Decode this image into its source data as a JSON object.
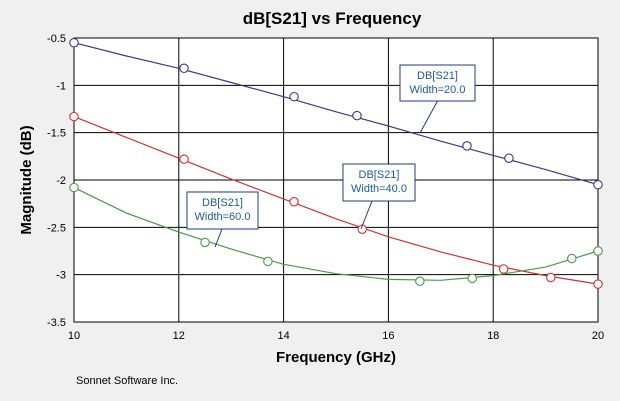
{
  "chart_data": {
    "type": "line",
    "title": "dB[S21] vs Frequency",
    "xlabel": "Frequency (GHz)",
    "ylabel": "Magnitude (dB)",
    "xlim": [
      10,
      20
    ],
    "ylim": [
      -3.5,
      -0.5
    ],
    "xticks": [
      "10",
      "12",
      "14",
      "16",
      "18",
      "20"
    ],
    "yticks": [
      "-0.5",
      "-1",
      "-1.5",
      "-2",
      "-2.5",
      "-3",
      "-3.5"
    ],
    "grid": true,
    "footer": "Sonnet Software Inc.",
    "series": [
      {
        "color": "#3a3a8c",
        "callout": [
          "DB[S21]",
          "Width=20.0"
        ],
        "x": [
          10,
          11,
          12,
          13,
          14,
          15,
          16,
          17,
          18,
          19,
          20
        ],
        "y": [
          -0.55,
          -0.69,
          -0.82,
          -0.97,
          -1.12,
          -1.28,
          -1.43,
          -1.59,
          -1.74,
          -1.89,
          -2.05
        ],
        "marker_x": [
          10,
          12.1,
          14.2,
          15.4,
          17.5,
          18.3,
          20
        ],
        "marker_y": [
          -0.55,
          -0.82,
          -1.12,
          -1.32,
          -1.64,
          -1.77,
          -2.05
        ]
      },
      {
        "color": "#d23232",
        "callout": [
          "DB[S21]",
          "Width=40.0"
        ],
        "x": [
          10,
          11,
          12,
          13,
          14,
          15,
          16,
          17,
          18,
          19,
          20
        ],
        "y": [
          -1.33,
          -1.55,
          -1.77,
          -1.99,
          -2.2,
          -2.41,
          -2.6,
          -2.76,
          -2.9,
          -3.01,
          -3.1
        ],
        "marker_x": [
          10,
          12.1,
          14.2,
          15.5,
          18.2,
          19.1,
          20
        ],
        "marker_y": [
          -1.33,
          -1.78,
          -2.23,
          -2.52,
          -2.94,
          -3.03,
          -3.1
        ],
        "marker_fill": "#ffffff"
      },
      {
        "color": "#4a9a4a",
        "callout": [
          "DB[S21]",
          "Width=60.0"
        ],
        "x": [
          10,
          11,
          12,
          13,
          14,
          15,
          16,
          17,
          18,
          19,
          20
        ],
        "y": [
          -2.08,
          -2.35,
          -2.55,
          -2.73,
          -2.89,
          -2.99,
          -3.05,
          -3.06,
          -3.01,
          -2.92,
          -2.75
        ],
        "marker_x": [
          10,
          12.5,
          13.7,
          16.6,
          17.6,
          19.5,
          20
        ],
        "marker_y": [
          -2.08,
          -2.66,
          -2.86,
          -3.07,
          -3.04,
          -2.83,
          -2.75
        ]
      }
    ]
  }
}
